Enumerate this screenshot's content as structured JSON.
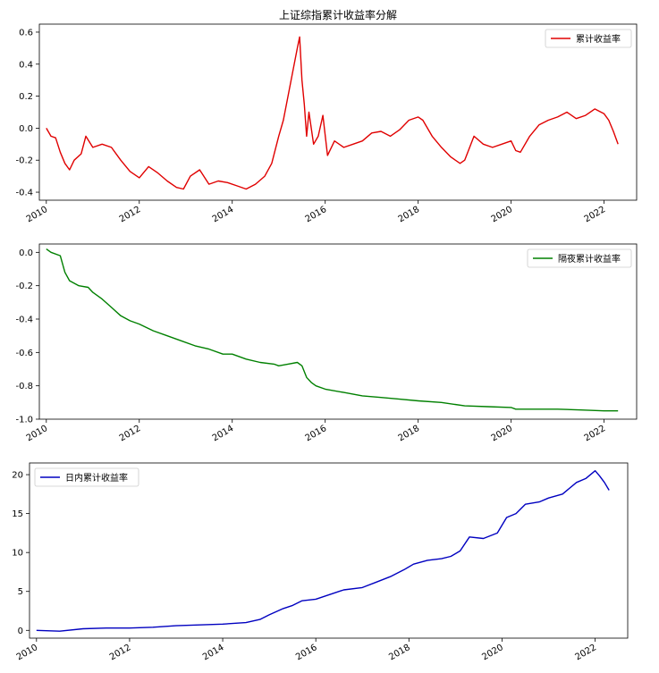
{
  "chart_data": [
    {
      "type": "line",
      "title": "上证综指累计收益率分解",
      "xlabel": "",
      "ylabel": "",
      "xlim": [
        2009.85,
        2022.7
      ],
      "ylim": [
        -0.45,
        0.65
      ],
      "x_ticks": [
        2010,
        2012,
        2014,
        2016,
        2018,
        2020,
        2022
      ],
      "x_tick_labels": [
        "2010",
        "2012",
        "2014",
        "2016",
        "2018",
        "2020",
        "2022"
      ],
      "y_ticks": [
        -0.4,
        -0.2,
        0.0,
        0.2,
        0.4,
        0.6
      ],
      "y_tick_labels": [
        "-0.4",
        "-0.2",
        "0.0",
        "0.2",
        "0.4",
        "0.6"
      ],
      "grid": false,
      "legend_position": "top-right",
      "series": [
        {
          "name": "累计收益率",
          "color": "#e00000",
          "x": [
            2010.0,
            2010.1,
            2010.2,
            2010.3,
            2010.4,
            2010.5,
            2010.6,
            2010.75,
            2010.85,
            2011.0,
            2011.2,
            2011.4,
            2011.6,
            2011.8,
            2012.0,
            2012.2,
            2012.4,
            2012.6,
            2012.8,
            2012.95,
            2013.1,
            2013.3,
            2013.5,
            2013.7,
            2013.9,
            2014.1,
            2014.3,
            2014.5,
            2014.7,
            2014.85,
            2015.0,
            2015.1,
            2015.2,
            2015.3,
            2015.4,
            2015.45,
            2015.5,
            2015.55,
            2015.6,
            2015.65,
            2015.7,
            2015.75,
            2015.85,
            2015.95,
            2016.05,
            2016.2,
            2016.4,
            2016.6,
            2016.8,
            2017.0,
            2017.2,
            2017.4,
            2017.6,
            2017.8,
            2018.0,
            2018.1,
            2018.3,
            2018.5,
            2018.7,
            2018.9,
            2019.0,
            2019.2,
            2019.4,
            2019.6,
            2019.8,
            2020.0,
            2020.1,
            2020.2,
            2020.4,
            2020.6,
            2020.8,
            2021.0,
            2021.2,
            2021.4,
            2021.6,
            2021.8,
            2022.0,
            2022.1,
            2022.2,
            2022.3
          ],
          "y": [
            0.0,
            -0.05,
            -0.06,
            -0.15,
            -0.22,
            -0.26,
            -0.2,
            -0.16,
            -0.05,
            -0.12,
            -0.1,
            -0.12,
            -0.2,
            -0.27,
            -0.31,
            -0.24,
            -0.28,
            -0.33,
            -0.37,
            -0.38,
            -0.3,
            -0.26,
            -0.35,
            -0.33,
            -0.34,
            -0.36,
            -0.38,
            -0.35,
            -0.3,
            -0.22,
            -0.05,
            0.05,
            0.2,
            0.35,
            0.5,
            0.57,
            0.3,
            0.15,
            -0.05,
            0.1,
            0.0,
            -0.1,
            -0.05,
            0.08,
            -0.17,
            -0.08,
            -0.12,
            -0.1,
            -0.08,
            -0.03,
            -0.02,
            -0.05,
            -0.01,
            0.05,
            0.07,
            0.05,
            -0.05,
            -0.12,
            -0.18,
            -0.22,
            -0.2,
            -0.05,
            -0.1,
            -0.12,
            -0.1,
            -0.08,
            -0.14,
            -0.15,
            -0.05,
            0.02,
            0.05,
            0.07,
            0.1,
            0.06,
            0.08,
            0.12,
            0.09,
            0.05,
            -0.02,
            -0.1
          ]
        }
      ]
    },
    {
      "type": "line",
      "title": "",
      "xlabel": "",
      "ylabel": "",
      "xlim": [
        2009.85,
        2022.7
      ],
      "ylim": [
        -1.0,
        0.05
      ],
      "x_ticks": [
        2010,
        2012,
        2014,
        2016,
        2018,
        2020,
        2022
      ],
      "x_tick_labels": [
        "2010",
        "2012",
        "2014",
        "2016",
        "2018",
        "2020",
        "2022"
      ],
      "y_ticks": [
        -1.0,
        -0.8,
        -0.6,
        -0.4,
        -0.2,
        0.0
      ],
      "y_tick_labels": [
        "-1.0",
        "-0.8",
        "-0.6",
        "-0.4",
        "-0.2",
        "0.0"
      ],
      "grid": false,
      "legend_position": "top-right",
      "series": [
        {
          "name": "隔夜累计收益率",
          "color": "#008000",
          "x": [
            2010.0,
            2010.1,
            2010.3,
            2010.4,
            2010.5,
            2010.7,
            2010.9,
            2011.0,
            2011.2,
            2011.4,
            2011.6,
            2011.8,
            2012.0,
            2012.3,
            2012.6,
            2012.9,
            2013.2,
            2013.5,
            2013.8,
            2014.0,
            2014.3,
            2014.6,
            2014.9,
            2015.0,
            2015.2,
            2015.4,
            2015.5,
            2015.6,
            2015.7,
            2015.8,
            2016.0,
            2016.4,
            2016.8,
            2017.2,
            2017.6,
            2018.0,
            2018.5,
            2019.0,
            2019.5,
            2020.0,
            2020.1,
            2020.5,
            2021.0,
            2021.5,
            2022.0,
            2022.3
          ],
          "y": [
            0.02,
            0.0,
            -0.02,
            -0.12,
            -0.17,
            -0.2,
            -0.21,
            -0.24,
            -0.28,
            -0.33,
            -0.38,
            -0.41,
            -0.43,
            -0.47,
            -0.5,
            -0.53,
            -0.56,
            -0.58,
            -0.61,
            -0.61,
            -0.64,
            -0.66,
            -0.67,
            -0.68,
            -0.67,
            -0.66,
            -0.68,
            -0.75,
            -0.78,
            -0.8,
            -0.82,
            -0.84,
            -0.86,
            -0.87,
            -0.88,
            -0.89,
            -0.9,
            -0.92,
            -0.925,
            -0.93,
            -0.94,
            -0.94,
            -0.94,
            -0.945,
            -0.95,
            -0.95
          ]
        }
      ]
    },
    {
      "type": "line",
      "title": "",
      "xlabel": "",
      "ylabel": "",
      "xlim": [
        2009.85,
        2022.7
      ],
      "ylim": [
        -1.0,
        21.5
      ],
      "x_ticks": [
        2010,
        2012,
        2014,
        2016,
        2018,
        2020,
        2022
      ],
      "x_tick_labels": [
        "2010",
        "2012",
        "2014",
        "2016",
        "2018",
        "2020",
        "2022"
      ],
      "y_ticks": [
        0,
        5,
        10,
        15,
        20
      ],
      "y_tick_labels": [
        "0",
        "5",
        "10",
        "15",
        "20"
      ],
      "grid": false,
      "legend_position": "top-left",
      "series": [
        {
          "name": "日内累计收益率",
          "color": "#0000c0",
          "x": [
            2010.0,
            2010.5,
            2011.0,
            2011.5,
            2012.0,
            2012.5,
            2013.0,
            2013.5,
            2014.0,
            2014.5,
            2014.8,
            2015.0,
            2015.3,
            2015.5,
            2015.7,
            2016.0,
            2016.3,
            2016.6,
            2017.0,
            2017.3,
            2017.6,
            2017.9,
            2018.1,
            2018.4,
            2018.7,
            2018.9,
            2019.1,
            2019.3,
            2019.6,
            2019.9,
            2020.1,
            2020.3,
            2020.5,
            2020.8,
            2021.0,
            2021.3,
            2021.6,
            2021.8,
            2022.0,
            2022.1,
            2022.2,
            2022.3
          ],
          "y": [
            0.0,
            -0.1,
            0.2,
            0.3,
            0.3,
            0.4,
            0.6,
            0.7,
            0.8,
            1.0,
            1.4,
            2.0,
            2.8,
            3.2,
            3.8,
            4.0,
            4.6,
            5.2,
            5.5,
            6.2,
            6.9,
            7.8,
            8.5,
            9.0,
            9.2,
            9.5,
            10.2,
            12.0,
            11.8,
            12.5,
            14.5,
            15.0,
            16.2,
            16.5,
            17.0,
            17.5,
            19.0,
            19.5,
            20.5,
            19.8,
            19.0,
            18.0
          ]
        }
      ]
    }
  ]
}
